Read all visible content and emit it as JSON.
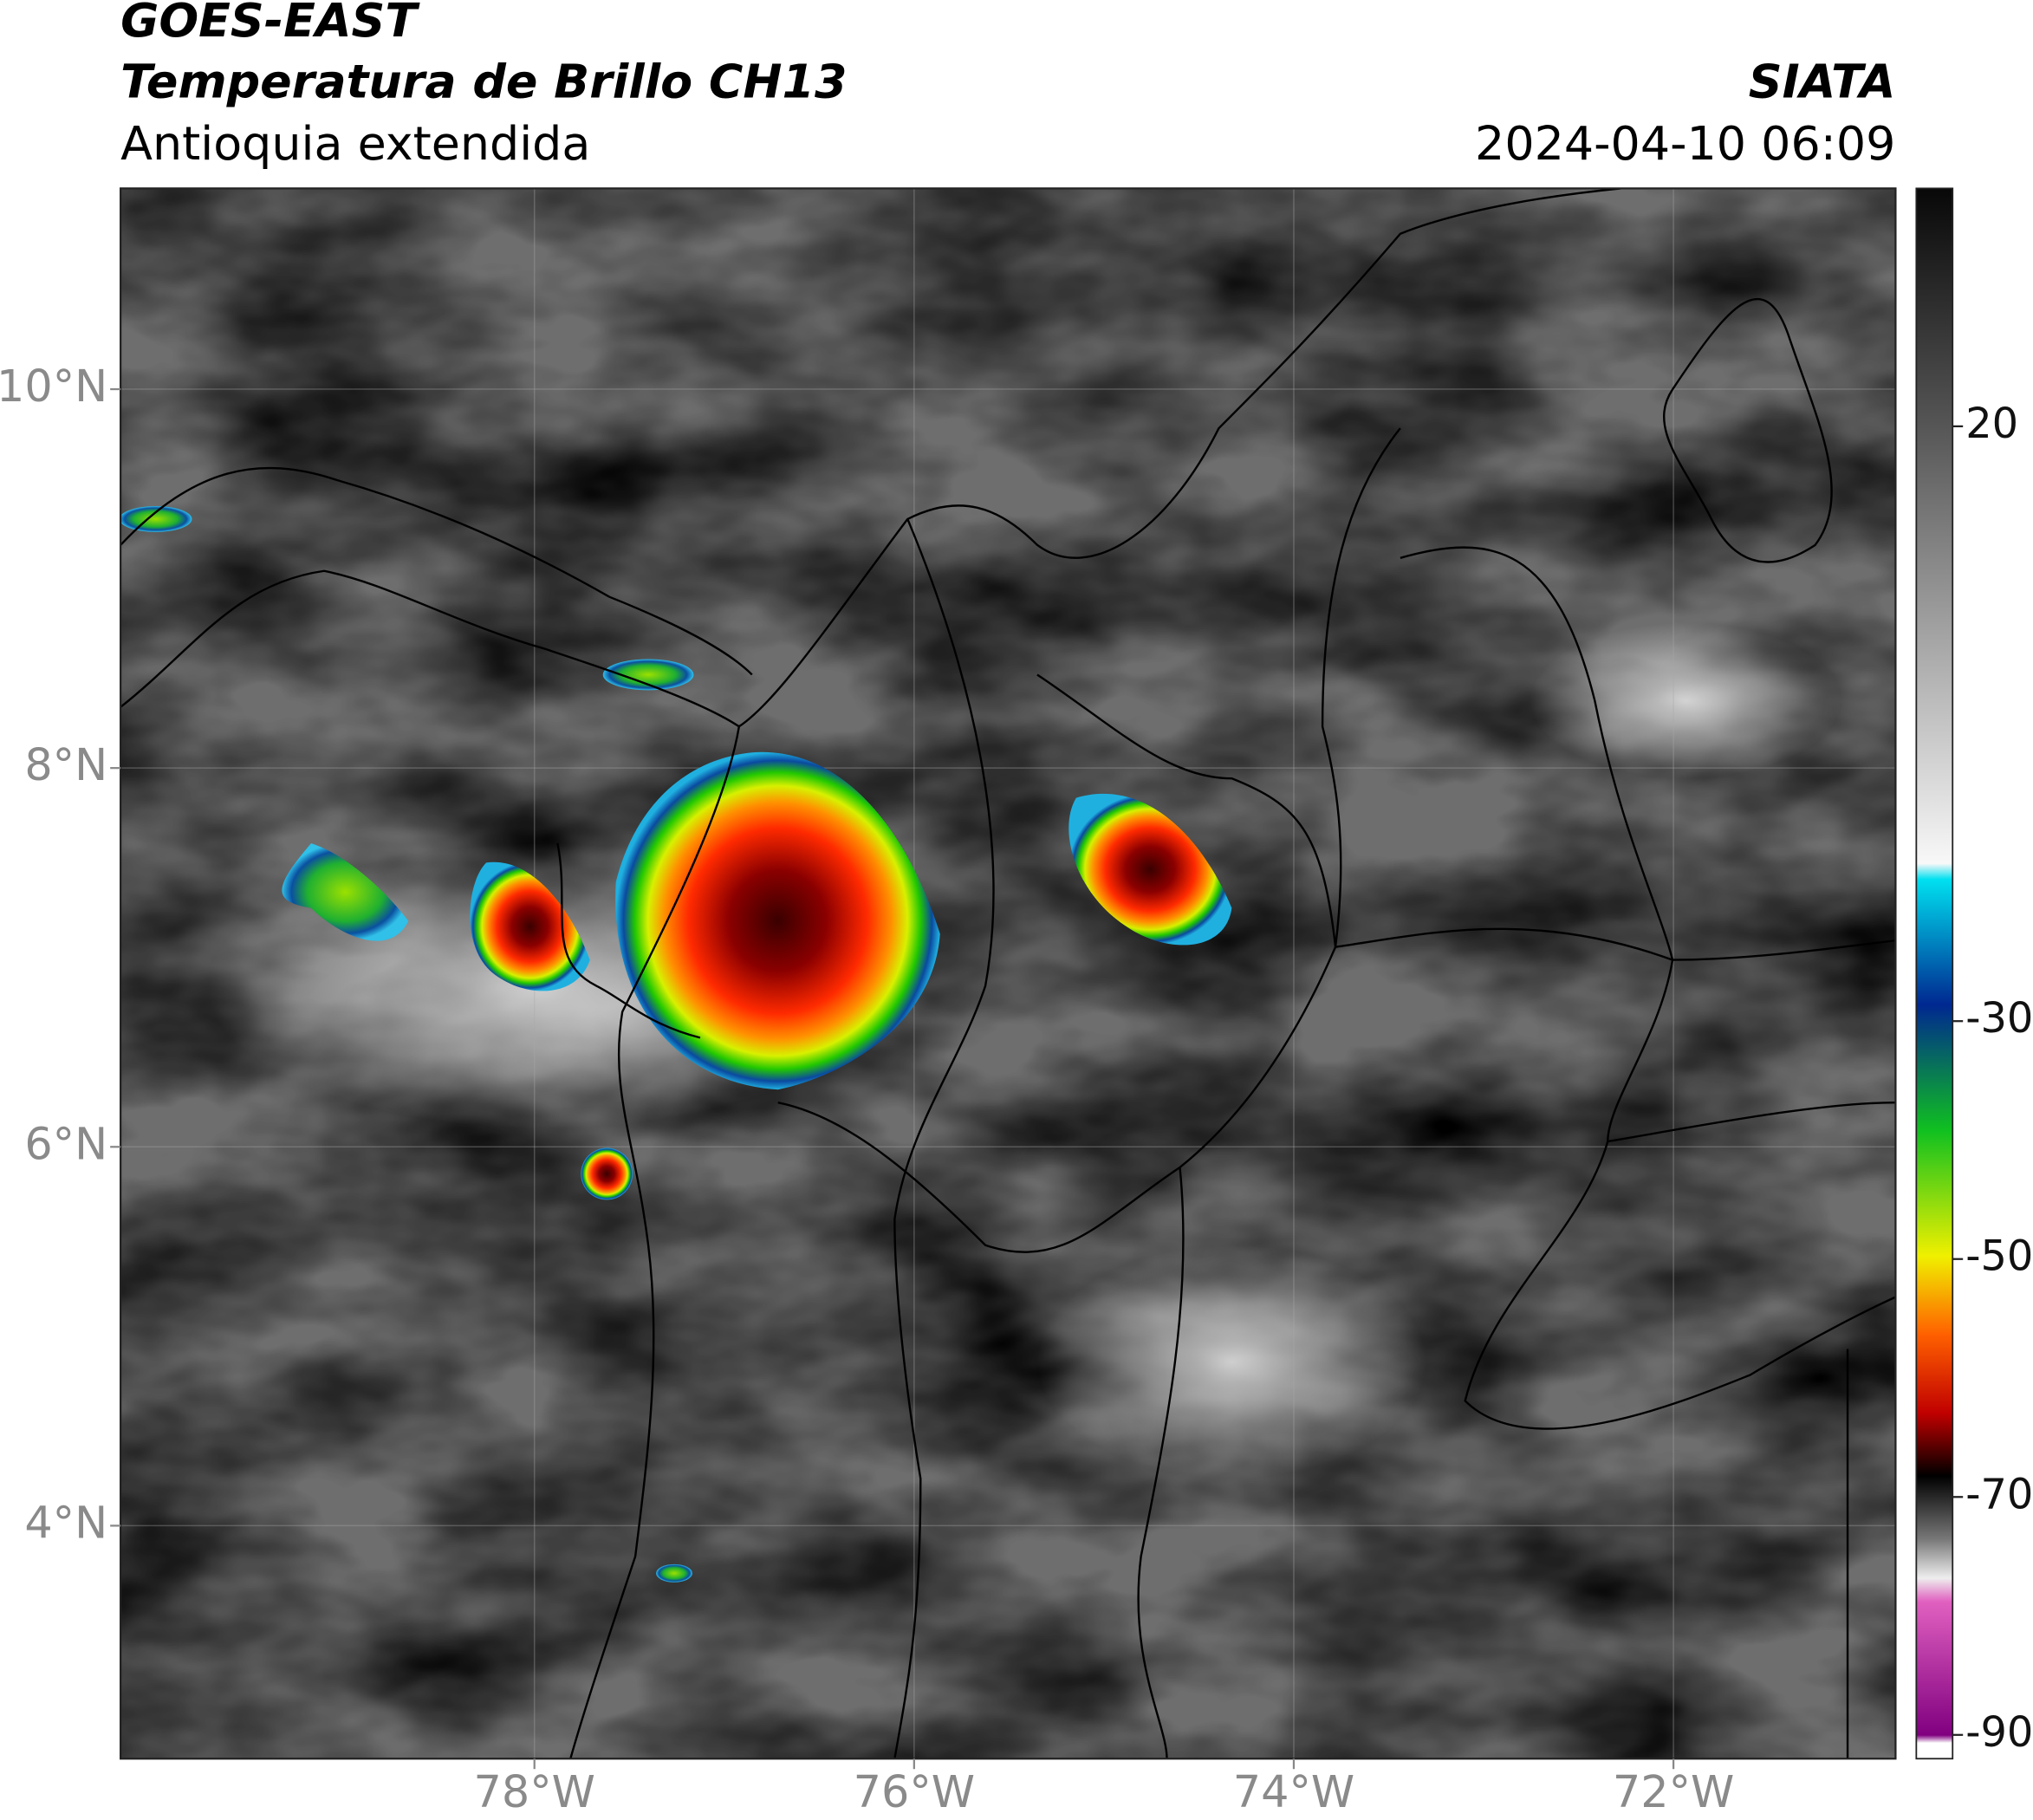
{
  "header": {
    "title": "GOES-EAST",
    "subtitle": "Temperatura de Brillo CH13",
    "region": "Antioquia extendida",
    "source": "SIATA",
    "datetime": "2024-04-10 06:09"
  },
  "map": {
    "xlim": [
      -80.18,
      -70.83
    ],
    "ylim": [
      2.77,
      11.06
    ],
    "xticks": [
      {
        "value": -78,
        "label": "78°W"
      },
      {
        "value": -76,
        "label": "76°W"
      },
      {
        "value": -74,
        "label": "74°W"
      },
      {
        "value": -72,
        "label": "72°W"
      }
    ],
    "yticks": [
      {
        "value": 10,
        "label": "10°N"
      },
      {
        "value": 8,
        "label": "8°N"
      },
      {
        "value": 6,
        "label": "6°N"
      },
      {
        "value": 4,
        "label": "4°N"
      }
    ]
  },
  "colorbar": {
    "lim": [
      -92,
      40
    ],
    "ticks": [
      20,
      -30,
      -50,
      -70,
      -90
    ]
  }
}
